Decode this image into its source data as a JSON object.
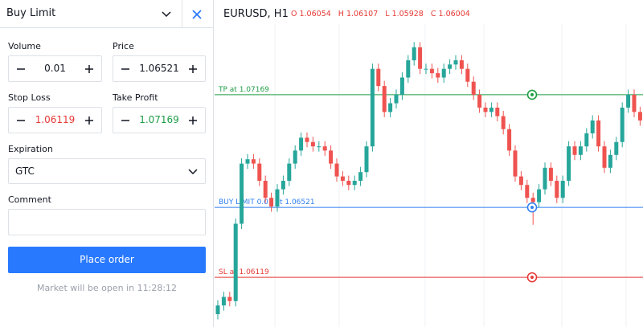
{
  "panel": {
    "title": "Buy Limit",
    "volume": {
      "label": "Volume",
      "value": "0.01"
    },
    "price": {
      "label": "Price",
      "value": "1.06521"
    },
    "stop_loss": {
      "label": "Stop Loss",
      "value": "1.06119"
    },
    "take_profit": {
      "label": "Take Profit",
      "value": "1.07169"
    },
    "expiration": {
      "label": "Expiration",
      "value": "GTC"
    },
    "comment": {
      "label": "Comment"
    },
    "button": "Place order",
    "status": "Market will be open in 11:28:12"
  },
  "chart_data": {
    "type": "candlestick",
    "title": "EURUSD, H1",
    "ohlc": [
      "O 1.06054",
      "H 1.06107",
      "L 1.05928",
      "C 1.06004"
    ],
    "ylim": [
      1.05833,
      1.07714
    ],
    "up_color": "#26a69a",
    "down_color": "#ef5350",
    "open": [
      1.05907,
      1.05957,
      1.06006,
      1.05982,
      1.06427,
      1.06773,
      1.06798,
      1.06773,
      1.06674,
      1.06576,
      1.06526,
      1.06625,
      1.06674,
      1.06773,
      1.06848,
      1.06922,
      1.06897,
      1.06872,
      1.06872,
      1.06848,
      1.06773,
      1.06699,
      1.06674,
      1.0665,
      1.06674,
      1.06724,
      1.06872,
      1.07318,
      1.07219,
      1.0707,
      1.0712,
      1.07169,
      1.07268,
      1.07367,
      1.07442,
      1.07318,
      1.07318,
      1.07293,
      1.07268,
      1.07318,
      1.07343,
      1.07367,
      1.07318,
      1.07244,
      1.07169,
      1.07095,
      1.0707,
      1.07095,
      1.07046,
      1.06971,
      1.06848,
      1.06699,
      1.0665,
      1.06576,
      1.06551,
      1.06625,
      1.06749,
      1.06674,
      1.06576,
      1.06674,
      1.06872,
      1.06823,
      1.06872,
      1.06947,
      1.07021,
      1.06872,
      1.06749,
      1.06823,
      1.06897,
      1.07095,
      1.07169,
      1.0707
    ],
    "high": [
      1.05987,
      1.06036,
      1.06036,
      1.06457,
      1.06803,
      1.06828,
      1.06828,
      1.06803,
      1.06704,
      1.06606,
      1.06655,
      1.06704,
      1.06803,
      1.06878,
      1.06952,
      1.06952,
      1.06927,
      1.06902,
      1.06902,
      1.06878,
      1.06803,
      1.06729,
      1.06704,
      1.06704,
      1.06754,
      1.06902,
      1.07348,
      1.07348,
      1.07249,
      1.0715,
      1.07199,
      1.07298,
      1.07397,
      1.07472,
      1.07472,
      1.07348,
      1.07348,
      1.07323,
      1.07348,
      1.07373,
      1.07397,
      1.07397,
      1.07348,
      1.07274,
      1.07199,
      1.07125,
      1.07125,
      1.07125,
      1.07076,
      1.07001,
      1.06878,
      1.06729,
      1.0668,
      1.06606,
      1.06655,
      1.06779,
      1.06779,
      1.06704,
      1.06704,
      1.06902,
      1.06902,
      1.06902,
      1.06977,
      1.07051,
      1.07051,
      1.06902,
      1.06853,
      1.06927,
      1.07125,
      1.07199,
      1.07199,
      1.071
    ],
    "low": [
      1.05877,
      1.05927,
      1.05952,
      1.05952,
      1.06397,
      1.06743,
      1.06743,
      1.06644,
      1.06546,
      1.06496,
      1.06496,
      1.06595,
      1.06644,
      1.06743,
      1.06818,
      1.06867,
      1.06842,
      1.06842,
      1.06818,
      1.06743,
      1.06669,
      1.06644,
      1.0662,
      1.0662,
      1.06644,
      1.06694,
      1.06842,
      1.07189,
      1.0704,
      1.0704,
      1.0709,
      1.07139,
      1.07238,
      1.07337,
      1.07288,
      1.07288,
      1.07263,
      1.07238,
      1.07238,
      1.07288,
      1.07313,
      1.07288,
      1.07214,
      1.07139,
      1.07065,
      1.0704,
      1.0704,
      1.07016,
      1.06941,
      1.06818,
      1.06669,
      1.0662,
      1.06546,
      1.06421,
      1.06521,
      1.06595,
      1.06644,
      1.06546,
      1.06546,
      1.06644,
      1.06793,
      1.06793,
      1.06842,
      1.06917,
      1.06842,
      1.06719,
      1.06719,
      1.06793,
      1.06867,
      1.07065,
      1.0704,
      1.06991
    ],
    "close": [
      1.05957,
      1.06006,
      1.05982,
      1.06427,
      1.06773,
      1.06798,
      1.06773,
      1.06674,
      1.06576,
      1.06526,
      1.06625,
      1.06674,
      1.06773,
      1.06848,
      1.06922,
      1.06897,
      1.06872,
      1.06872,
      1.06848,
      1.06773,
      1.06699,
      1.06674,
      1.0665,
      1.06674,
      1.06724,
      1.06872,
      1.07318,
      1.07219,
      1.0707,
      1.0712,
      1.07169,
      1.07268,
      1.07367,
      1.07442,
      1.07318,
      1.07318,
      1.07293,
      1.07268,
      1.07318,
      1.07343,
      1.07367,
      1.07318,
      1.07244,
      1.07169,
      1.07095,
      1.0707,
      1.07095,
      1.07046,
      1.06971,
      1.06848,
      1.06699,
      1.0665,
      1.06576,
      1.06551,
      1.06625,
      1.06749,
      1.06674,
      1.06576,
      1.06674,
      1.06872,
      1.06823,
      1.06872,
      1.06947,
      1.07021,
      1.06872,
      1.06749,
      1.06823,
      1.06897,
      1.07095,
      1.07169,
      1.0707,
      1.07021
    ],
    "levels": [
      {
        "label": "TP at 1.07169",
        "price": 1.07169,
        "color": "#1e9e45"
      },
      {
        "label": "BUY LIMIT 0.01 at 1.06521",
        "price": 1.06521,
        "color": "#2f7ff0"
      },
      {
        "label": "SL at 1.06119",
        "price": 1.06119,
        "color": "#e53935"
      }
    ]
  }
}
